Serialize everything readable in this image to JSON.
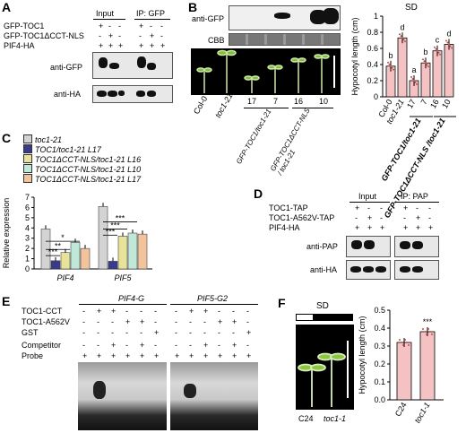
{
  "panelA": {
    "label": "A",
    "rows": [
      "GFP-TOC1",
      "GFP-TOC1ΔCCT-NLS",
      "PIF4-HA"
    ],
    "input": "Input",
    "ip": "IP: GFP",
    "signs": [
      [
        "+",
        "-",
        "-"
      ],
      [
        "-",
        "+",
        "-"
      ],
      [
        "+",
        "+",
        "+"
      ]
    ],
    "signs_ip": [
      [
        "+",
        "-",
        "-"
      ],
      [
        "-",
        "+",
        "-"
      ],
      [
        "+",
        "+",
        "+"
      ]
    ],
    "blot1": "anti-GFP",
    "blot2": "anti-HA"
  },
  "panelB": {
    "label": "B",
    "blot1": "anti-GFP",
    "blot2": "CBB",
    "condition": "SD",
    "seedlings": [
      "Col-0",
      "toc1-21",
      "17",
      "7",
      "16",
      "10"
    ],
    "group1": "GFP-TOC1/toc1-21",
    "group2": "GFP-TOC1ΔCCT-NLS / toc1-21",
    "chart_data": {
      "type": "bar",
      "ylabel": "Hypocotyl length (cm)",
      "ylim": [
        0,
        1
      ],
      "yticks": [
        0,
        0.2,
        0.4,
        0.6,
        0.8,
        1
      ],
      "categories": [
        "Col-0",
        "toc1-21",
        "17",
        "7",
        "16",
        "10"
      ],
      "values": [
        0.38,
        0.73,
        0.2,
        0.42,
        0.57,
        0.65
      ],
      "letters": [
        "b",
        "d",
        "a",
        "b",
        "c",
        "d"
      ],
      "group_labels": [
        "GFP-TOC1/toc1-21",
        "GFP-TOC1ΔCCT-NLS /toc1-21"
      ],
      "colors": [
        "#f4c2c2",
        "#f4c2c2",
        "#f4c2c2",
        "#f4c2c2",
        "#f4c2c2",
        "#f4c2c2"
      ]
    }
  },
  "panelC": {
    "label": "C",
    "legend": [
      "toc1-21",
      "TOC1/toc1-21 L17",
      "TOC1ΔCCT-NLS/toc1-21 L16",
      "TOC1ΔCCT-NLS/toc1-21 L10",
      "TOC1ΔCCT-NLS/toc1-21 L17"
    ],
    "chart_data": {
      "type": "bar",
      "ylabel": "Relative expression",
      "ylim": [
        0,
        7
      ],
      "yticks": [
        0,
        1,
        2,
        3,
        4,
        5,
        6,
        7
      ],
      "categories": [
        "PIF4",
        "PIF5"
      ],
      "series": [
        {
          "name": "toc1-21",
          "values": [
            3.9,
            6.1
          ],
          "color": "#d3d3d3"
        },
        {
          "name": "TOC1/toc1-21 L17",
          "values": [
            0.8,
            0.75
          ],
          "color": "#3a3a8c"
        },
        {
          "name": "TOC1ΔCCT-NLS/toc1-21 L16",
          "values": [
            1.6,
            3.2
          ],
          "color": "#e8e39a"
        },
        {
          "name": "TOC1ΔCCT-NLS/toc1-21 L10",
          "values": [
            2.6,
            3.5
          ],
          "color": "#bfe8d8"
        },
        {
          "name": "TOC1ΔCCT-NLS/toc1-21 L17",
          "values": [
            2.0,
            3.4
          ],
          "color": "#f3c39c"
        }
      ],
      "significance": [
        "*",
        "**",
        "***",
        "***",
        "***",
        "***"
      ]
    }
  },
  "panelD": {
    "label": "D",
    "rows": [
      "TOC1-TAP",
      "TOC1-A562V-TAP",
      "PIF4-HA"
    ],
    "input": "Input",
    "ip": "IP: PAP",
    "signs": [
      [
        "+",
        "-",
        "-"
      ],
      [
        "-",
        "+",
        "-"
      ],
      [
        "+",
        "+",
        "+"
      ]
    ],
    "signs_ip": [
      [
        "+",
        "-",
        "-"
      ],
      [
        "-",
        "+",
        "-"
      ],
      [
        "+",
        "+",
        "+"
      ]
    ],
    "blot1": "anti-PAP",
    "blot2": "anti-HA"
  },
  "panelE": {
    "label": "E",
    "rows": [
      "TOC1-CCT",
      "TOC1-A562V",
      "GST",
      "Competitor",
      "Probe"
    ],
    "left_title": "PIF4-G",
    "right_title": "PIF5-G2",
    "signs_left": [
      [
        "-",
        "+",
        "+",
        "-",
        "-",
        "-"
      ],
      [
        "-",
        "-",
        "-",
        "+",
        "+",
        "-"
      ],
      [
        "-",
        "-",
        "-",
        "-",
        "-",
        "+"
      ],
      [
        "-",
        "-",
        "+",
        "-",
        "+",
        "-"
      ],
      [
        "+",
        "+",
        "+",
        "+",
        "+",
        "+"
      ]
    ],
    "signs_right": [
      [
        "-",
        "+",
        "+",
        "-",
        "-",
        "-"
      ],
      [
        "-",
        "-",
        "-",
        "+",
        "+",
        "-"
      ],
      [
        "-",
        "-",
        "-",
        "-",
        "-",
        "+"
      ],
      [
        "-",
        "-",
        "+",
        "-",
        "+",
        "-"
      ],
      [
        "+",
        "+",
        "+",
        "+",
        "+",
        "+"
      ]
    ]
  },
  "panelF": {
    "label": "F",
    "condition": "SD",
    "seedlings": [
      "C24",
      "toc1-1"
    ],
    "chart_data": {
      "type": "bar",
      "ylabel": "Hypocotyl length (cm)",
      "ylim": [
        0,
        0.5
      ],
      "yticks": [
        0,
        0.1,
        0.2,
        0.3,
        0.4,
        0.5
      ],
      "categories": [
        "C24",
        "toc1-1"
      ],
      "values": [
        0.32,
        0.38
      ],
      "significance": [
        "",
        "***"
      ],
      "colors": [
        "#f4c2c2",
        "#f4c2c2"
      ]
    }
  }
}
